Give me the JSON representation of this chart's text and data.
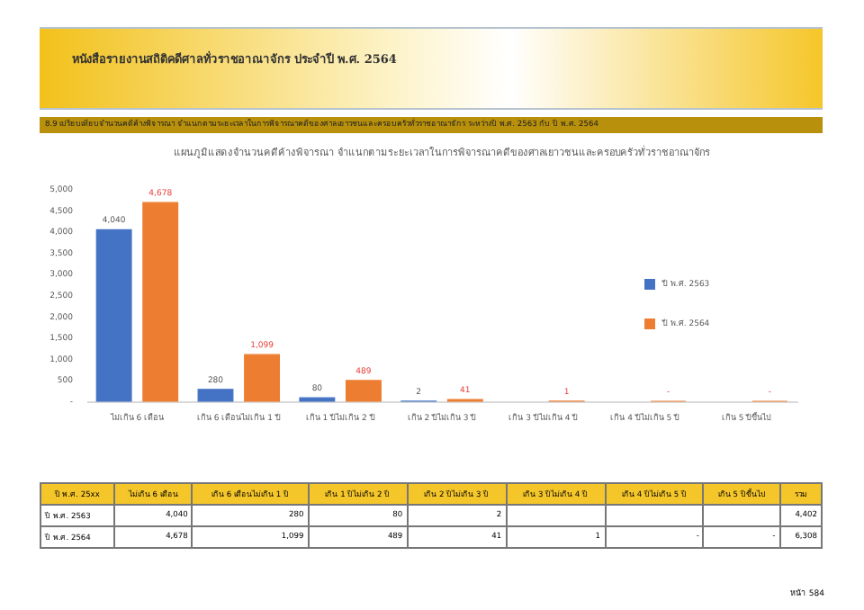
{
  "chart_data": {
    "type": "bar",
    "title": "แผนภูมิแสดงจำนวนคดีค้างพิจารณา จำแนกตามระยะเวลาในการพิจารณาคดีของศาลเยาวชนและครอบครัวทั่วราชอาณาจักร",
    "categories": [
      "ไม่เกิน 6 เดือน",
      "เกิน 6 เดือนไม่เกิน 1 ปี",
      "เกิน 1 ปีไม่เกิน 2 ปี",
      "เกิน 2 ปีไม่เกิน 3 ปี",
      "เกิน 3 ปีไม่เกิน 4 ปี",
      "เกิน 4 ปีไม่เกิน 5 ปี",
      "เกิน 5 ปีขึ้นไป"
    ],
    "series": [
      {
        "name": "ปี พ.ศ. 2563",
        "color": "#4472c4",
        "values": [
          4040,
          280,
          80,
          2,
          null,
          null,
          null
        ],
        "value_labels": [
          "4,040",
          "280",
          "80",
          "2",
          null,
          null,
          null
        ]
      },
      {
        "name": "ปี พ.ศ. 2564",
        "color": "#ed7d31",
        "values": [
          4678,
          1099,
          489,
          41,
          1,
          0,
          0
        ],
        "value_labels": [
          "4,678",
          "1,099",
          "489",
          "41",
          "1",
          "-",
          "-"
        ]
      }
    ],
    "ylim": [
      0,
      5000
    ],
    "yticks": [
      {
        "value": 0,
        "label": "-"
      },
      500,
      {
        "value": 1000,
        "label": "1,000"
      },
      {
        "value": 1500,
        "label": "1,500"
      },
      {
        "value": 2000,
        "label": "2,000"
      },
      {
        "value": 2500,
        "label": "2,500"
      },
      {
        "value": 3000,
        "label": "3,000"
      },
      {
        "value": 3500,
        "label": "3,500"
      },
      {
        "value": 4000,
        "label": "4,000"
      },
      {
        "value": 4500,
        "label": "4,500"
      },
      {
        "value": 5000,
        "label": "5,000"
      }
    ],
    "grid": false,
    "legend": "right",
    "annotations": [
      "หนังสือรายงานสถิติคดีศาลทั่วราชอาณาจักร ประจำปี พ.ศ. 2564",
      "8.9 เปรียบเทียบจำนวนคดีค้างพิจารณา จำแนกตามระยะเวลาในการพิจารณาคดีของศาลเยาวชนและครอบครัวทั่วราชอาณาจักร ระหว่างปี พ.ศ. 2563 กับ ปี พ.ศ. 2564",
      "ปี พ.ศ. 25xx",
      "รวม",
      "4,402",
      "6,308",
      "หน้า 584"
    ]
  }
}
